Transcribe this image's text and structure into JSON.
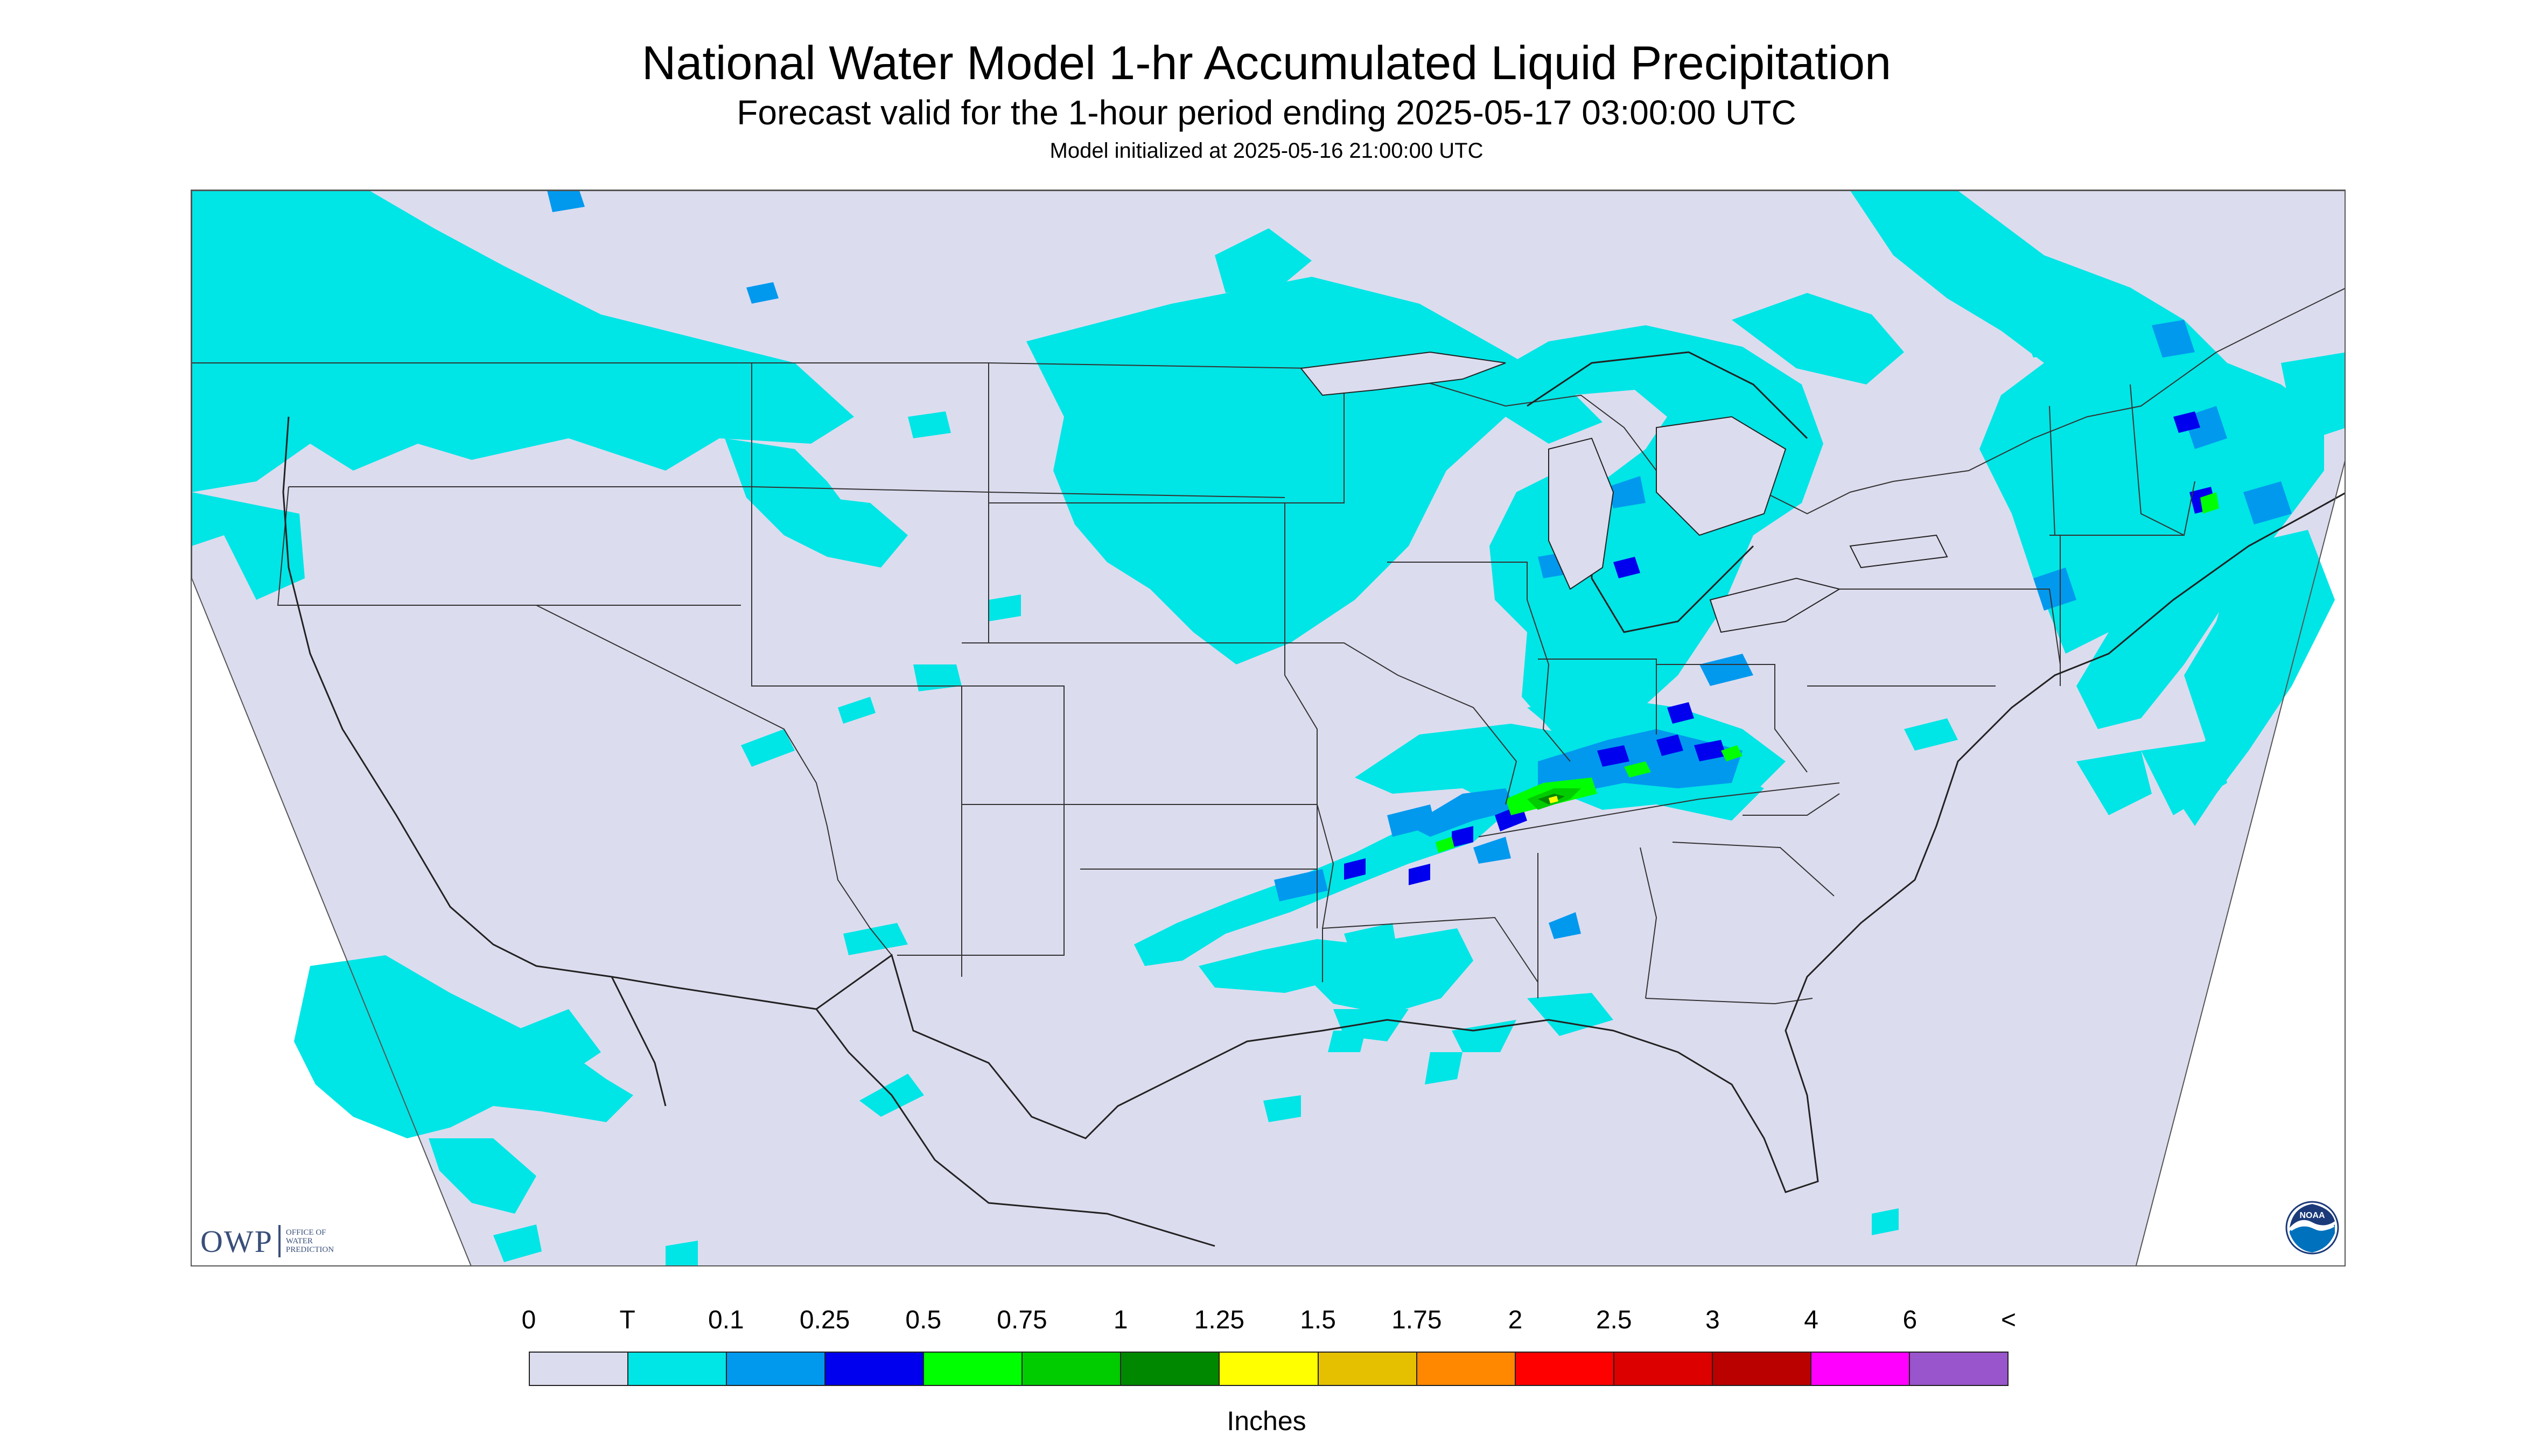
{
  "header": {
    "title": "National Water Model 1-hr Accumulated Liquid Precipitation",
    "subtitle": "Forecast valid for the 1-hour period ending 2025-05-17 03:00:00 UTC",
    "init_note": "Model initialized at 2025-05-16 21:00:00 UTC"
  },
  "logos": {
    "owp_text": "OWP",
    "owp_sub": [
      "OFFICE OF",
      "WATER",
      "PREDICTION"
    ],
    "noaa_text": "NOAA",
    "noaa_icon": "noaa-seal-icon"
  },
  "map": {
    "domain_color": "#dcdcef",
    "outside_color": "#ffffff",
    "boundary_color": "#333333"
  },
  "legend": {
    "tick_labels": [
      "0",
      "T",
      "0.1",
      "0.25",
      "0.5",
      "0.75",
      "1",
      "1.25",
      "1.5",
      "1.75",
      "2",
      "2.5",
      "3",
      "4",
      "6",
      "<"
    ],
    "colors": [
      "#dcdcef",
      "#00e5e5",
      "#0099ee",
      "#0000ee",
      "#00ff00",
      "#00cc00",
      "#008800",
      "#ffff00",
      "#e5c000",
      "#ff8800",
      "#ff0000",
      "#dd0000",
      "#bb0000",
      "#ff00ff",
      "#9955cc"
    ],
    "units": "Inches"
  }
}
